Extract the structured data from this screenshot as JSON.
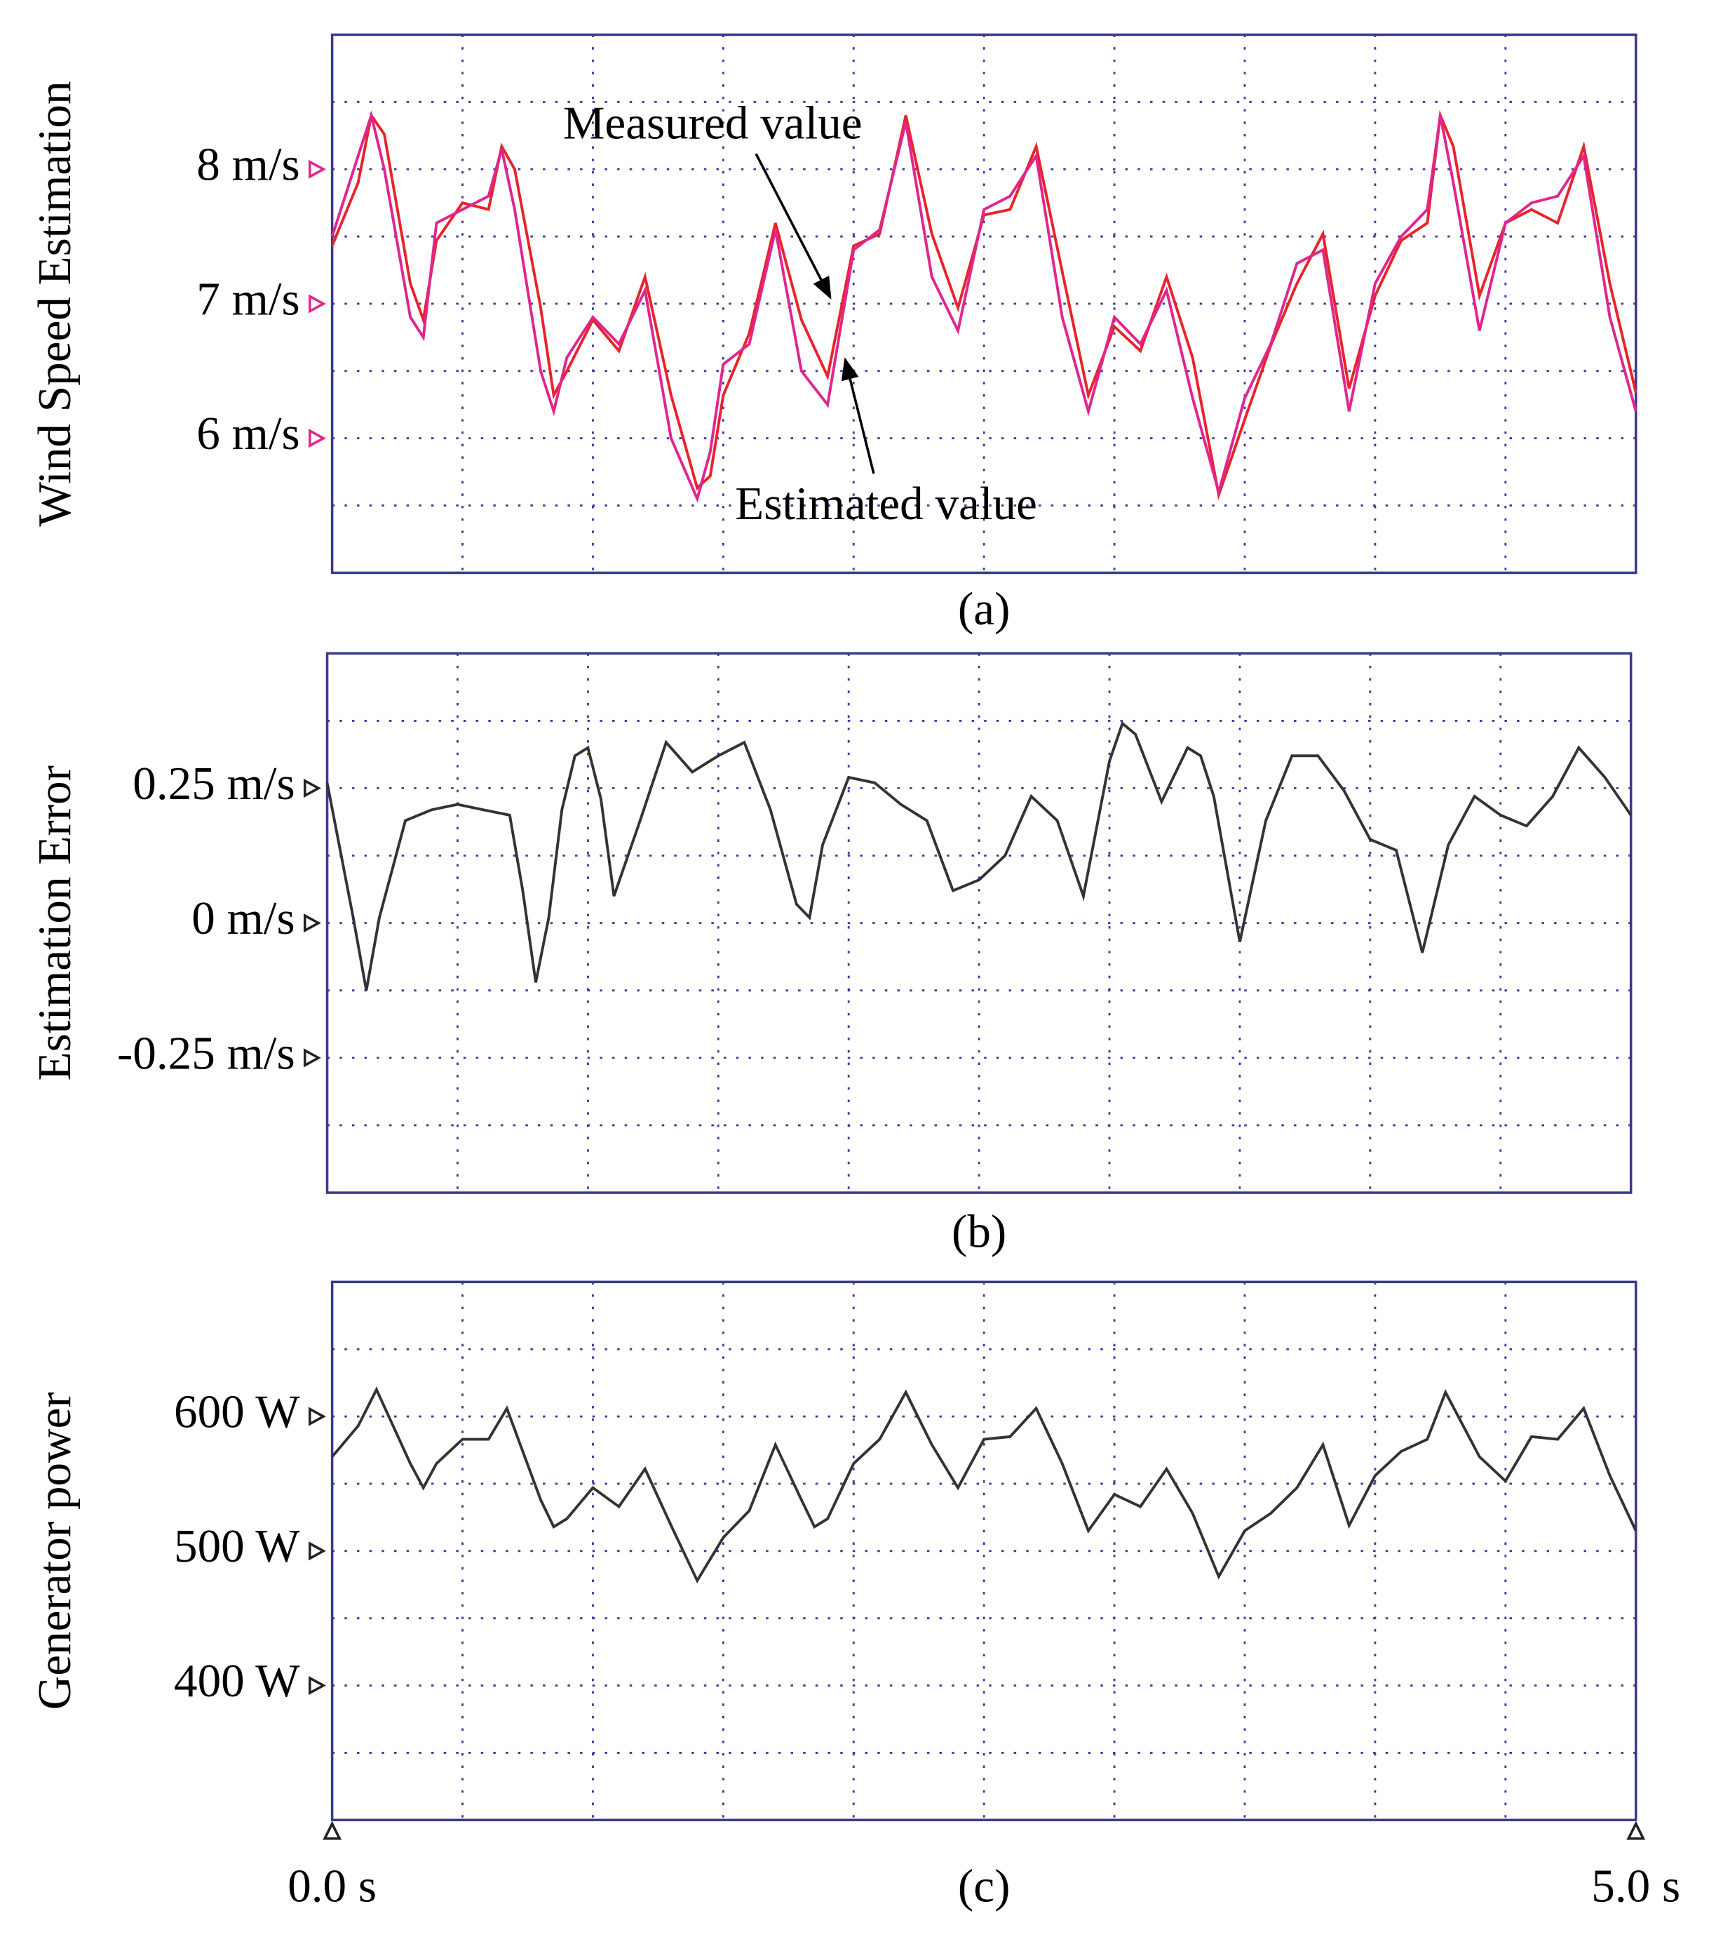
{
  "chart_data": [
    {
      "type": "line",
      "ylabel": "Wind Speed Estimation",
      "caption": "(a)",
      "xlim": [
        0,
        5
      ],
      "ylim": [
        5,
        9
      ],
      "yticks": [
        {
          "value": 6,
          "label": "6 m/s"
        },
        {
          "value": 7,
          "label": "7 m/s"
        },
        {
          "value": 8,
          "label": "8 m/s"
        }
      ],
      "tick_marker_color": "#e0258f",
      "grid": true,
      "annotations": [
        "Measured value",
        "Estimated value"
      ],
      "x": [
        0,
        0.1,
        0.15,
        0.2,
        0.3,
        0.35,
        0.4,
        0.5,
        0.6,
        0.65,
        0.7,
        0.8,
        0.85,
        0.9,
        1.0,
        1.1,
        1.2,
        1.3,
        1.4,
        1.45,
        1.5,
        1.6,
        1.7,
        1.8,
        1.9,
        2.0,
        2.1,
        2.2,
        2.3,
        2.4,
        2.5,
        2.6,
        2.7,
        2.8,
        2.9,
        3.0,
        3.1,
        3.2,
        3.3,
        3.4,
        3.5,
        3.6,
        3.7,
        3.8,
        3.9,
        4.0,
        4.1,
        4.2,
        4.25,
        4.3,
        4.4,
        4.5,
        4.6,
        4.7,
        4.8,
        4.9,
        5.0
      ],
      "series": [
        {
          "name": "Measured value",
          "color": "#e8232a",
          "values": [
            7.43,
            7.9,
            8.4,
            8.26,
            7.15,
            6.88,
            7.47,
            7.75,
            7.7,
            8.17,
            8.0,
            6.97,
            6.32,
            6.5,
            6.88,
            6.65,
            7.2,
            6.32,
            5.63,
            5.72,
            6.32,
            6.78,
            7.6,
            6.88,
            6.46,
            7.43,
            7.52,
            8.4,
            7.52,
            6.97,
            7.66,
            7.7,
            8.17,
            7.24,
            6.32,
            6.83,
            6.65,
            7.2,
            6.6,
            5.58,
            6.14,
            6.69,
            7.15,
            7.52,
            6.37,
            7.06,
            7.47,
            7.6,
            8.4,
            8.17,
            7.06,
            7.6,
            7.7,
            7.6,
            8.17,
            7.15,
            6.34
          ]
        },
        {
          "name": "Estimated value",
          "color": "#e0258f",
          "values": [
            7.5,
            8.1,
            8.4,
            8.0,
            6.9,
            6.75,
            7.6,
            7.7,
            7.8,
            8.15,
            7.7,
            6.5,
            6.2,
            6.6,
            6.9,
            6.7,
            7.1,
            6.0,
            5.55,
            5.9,
            6.55,
            6.7,
            7.55,
            6.5,
            6.25,
            7.4,
            7.55,
            8.35,
            7.2,
            6.8,
            7.7,
            7.8,
            8.1,
            6.9,
            6.2,
            6.9,
            6.7,
            7.1,
            6.3,
            5.6,
            6.3,
            6.7,
            7.3,
            7.4,
            6.2,
            7.15,
            7.5,
            7.7,
            8.4,
            7.9,
            6.8,
            7.6,
            7.75,
            7.8,
            8.1,
            6.9,
            6.2
          ]
        }
      ]
    },
    {
      "type": "line",
      "ylabel": "Estimation Error",
      "caption": "(b)",
      "xlim": [
        0,
        5
      ],
      "ylim": [
        -0.5,
        0.5
      ],
      "yticks": [
        {
          "value": 0.25,
          "label": "0.25 m/s"
        },
        {
          "value": 0,
          "label": "0 m/s"
        },
        {
          "value": -0.25,
          "label": "-0.25 m/s"
        }
      ],
      "tick_marker_color": "#222222",
      "grid": true,
      "color": "#333333",
      "x": [
        0,
        0.1,
        0.15,
        0.2,
        0.3,
        0.4,
        0.5,
        0.6,
        0.7,
        0.75,
        0.8,
        0.85,
        0.9,
        0.95,
        1.0,
        1.05,
        1.1,
        1.2,
        1.3,
        1.4,
        1.5,
        1.6,
        1.7,
        1.8,
        1.85,
        1.9,
        2.0,
        2.1,
        2.2,
        2.3,
        2.4,
        2.5,
        2.6,
        2.7,
        2.8,
        2.9,
        3.0,
        3.05,
        3.1,
        3.2,
        3.3,
        3.35,
        3.4,
        3.5,
        3.6,
        3.7,
        3.8,
        3.9,
        4.0,
        4.1,
        4.2,
        4.3,
        4.4,
        4.5,
        4.6,
        4.7,
        4.8,
        4.9,
        5.0
      ],
      "values": [
        0.26,
        0.01,
        -0.125,
        0.01,
        0.19,
        0.21,
        0.22,
        0.21,
        0.2,
        0.06,
        -0.11,
        0.01,
        0.21,
        0.31,
        0.325,
        0.23,
        0.05,
        0.19,
        0.335,
        0.28,
        0.31,
        0.335,
        0.21,
        0.035,
        0.01,
        0.145,
        0.27,
        0.26,
        0.22,
        0.19,
        0.06,
        0.08,
        0.125,
        0.235,
        0.19,
        0.05,
        0.3,
        0.37,
        0.35,
        0.225,
        0.325,
        0.31,
        0.235,
        -0.035,
        0.19,
        0.31,
        0.31,
        0.245,
        0.155,
        0.135,
        -0.055,
        0.145,
        0.235,
        0.2,
        0.18,
        0.235,
        0.325,
        0.27,
        0.2
      ]
    },
    {
      "type": "line",
      "ylabel": "Generator power",
      "caption": "(c)",
      "xlim": [
        0,
        5
      ],
      "ylim": [
        300,
        700
      ],
      "xticks": [
        {
          "value": 0,
          "label": "0.0 s"
        },
        {
          "value": 5,
          "label": "5.0 s"
        }
      ],
      "yticks": [
        {
          "value": 600,
          "label": "600 W"
        },
        {
          "value": 500,
          "label": "500 W"
        },
        {
          "value": 400,
          "label": "400 W"
        }
      ],
      "tick_marker_color": "#222222",
      "grid": true,
      "color": "#333333",
      "x": [
        0,
        0.1,
        0.17,
        0.3,
        0.35,
        0.4,
        0.5,
        0.6,
        0.67,
        0.8,
        0.85,
        0.9,
        1.0,
        1.1,
        1.2,
        1.3,
        1.4,
        1.5,
        1.6,
        1.7,
        1.8,
        1.85,
        1.9,
        2.0,
        2.1,
        2.2,
        2.3,
        2.4,
        2.5,
        2.6,
        2.7,
        2.8,
        2.9,
        3.0,
        3.1,
        3.2,
        3.3,
        3.4,
        3.5,
        3.6,
        3.7,
        3.8,
        3.9,
        4.0,
        4.1,
        4.2,
        4.27,
        4.4,
        4.5,
        4.6,
        4.7,
        4.8,
        4.9,
        5.0
      ],
      "values": [
        570,
        593,
        620,
        565,
        547,
        565,
        583,
        583,
        606,
        538,
        518,
        524,
        547,
        533,
        561,
        519,
        478,
        510,
        530,
        579,
        538,
        518,
        524,
        565,
        583,
        618,
        579,
        547,
        583,
        585,
        606,
        565,
        515,
        542,
        533,
        561,
        528,
        481,
        515,
        528,
        547,
        579,
        519,
        556,
        574,
        583,
        618,
        570,
        552,
        585,
        583,
        606,
        556,
        515
      ]
    }
  ]
}
